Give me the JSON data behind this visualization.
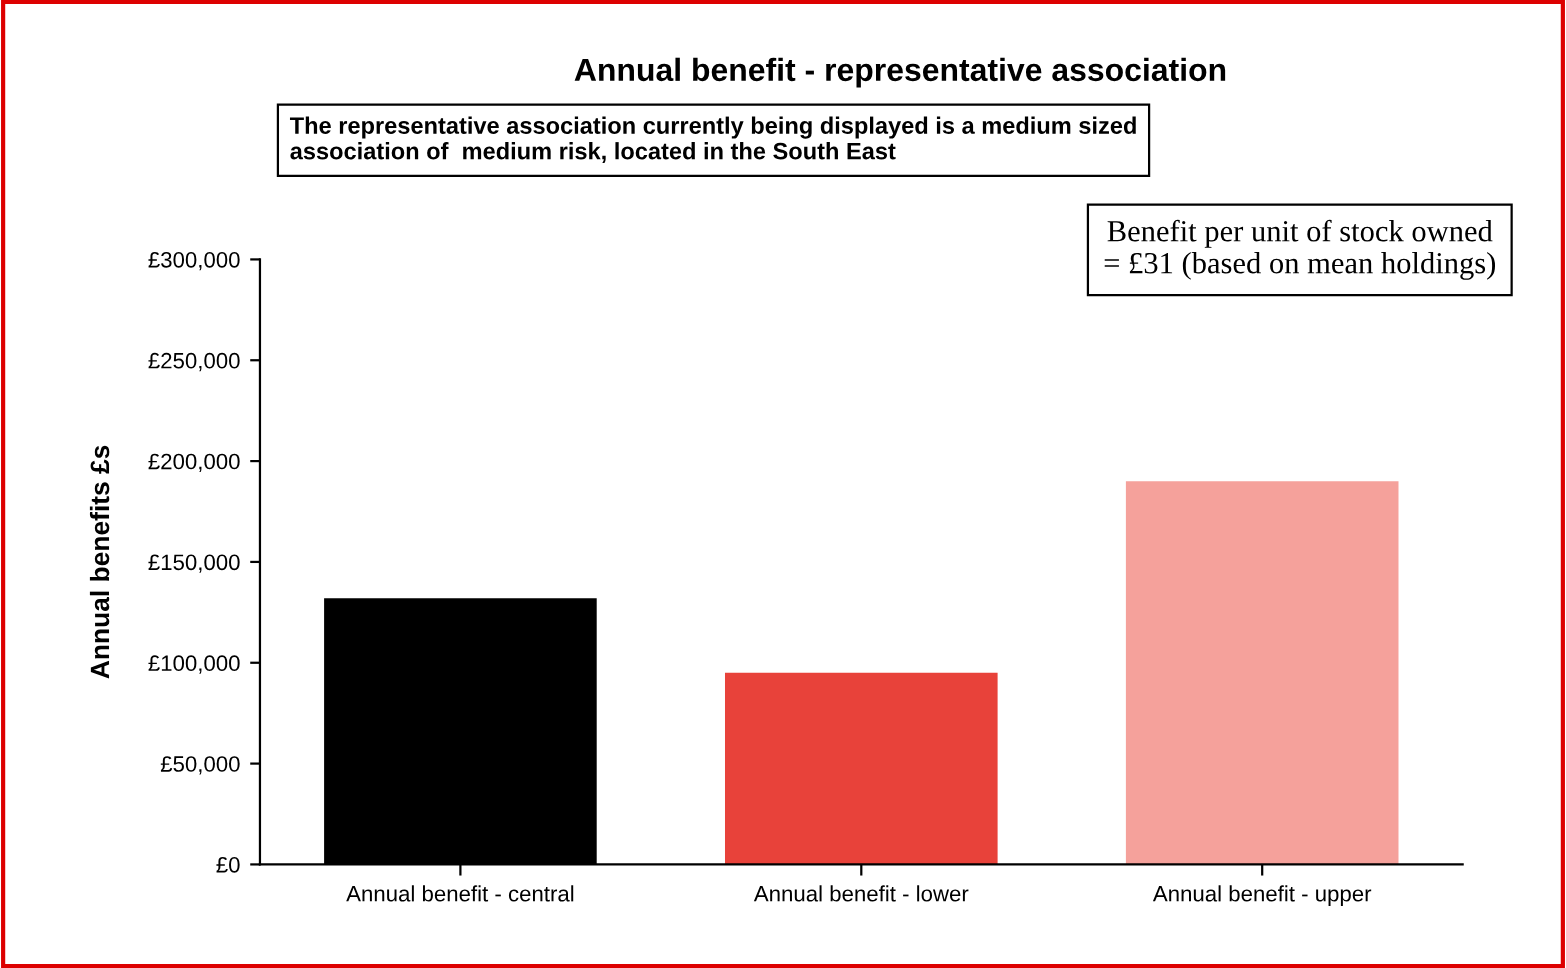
{
  "chart_data": {
    "type": "bar",
    "title": "Annual benefit - representative association",
    "ylabel": "Annual benefits £s",
    "categories": [
      "Annual benefit - central",
      "Annual benefit - lower",
      "Annual benefit - upper"
    ],
    "values": [
      132000,
      95000,
      190000
    ],
    "colors": [
      "#000000",
      "#e8423a",
      "#f5a19b"
    ],
    "ylim": [
      0,
      300000
    ],
    "yticks": [
      {
        "value": 0,
        "label": "£0"
      },
      {
        "value": 50000,
        "label": "£50,000"
      },
      {
        "value": 100000,
        "label": "£100,000"
      },
      {
        "value": 150000,
        "label": "£150,000"
      },
      {
        "value": 200000,
        "label": "£200,000"
      },
      {
        "value": 250000,
        "label": "£250,000"
      },
      {
        "value": 300000,
        "label": "£300,000"
      }
    ],
    "grid": false,
    "legend": false,
    "annotations": [
      "The representative association currently being displayed is a medium sized\nassociation of  medium risk, located in the South East",
      "Benefit per unit of stock owned\n= £31 (based on mean holdings)"
    ]
  }
}
